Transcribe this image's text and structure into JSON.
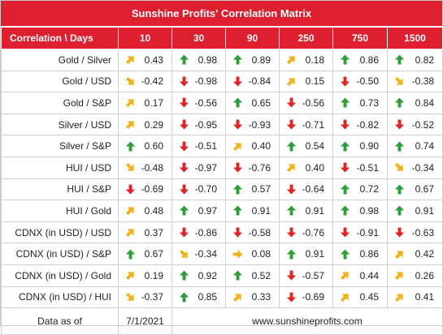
{
  "title": "Sunshine Profits' Correlation Matrix",
  "header": {
    "first": "Correlation \\ Days",
    "days": [
      "10",
      "30",
      "90",
      "250",
      "750",
      "1500"
    ]
  },
  "colors": {
    "header_bg": "#dd1f2f",
    "up": "#2e9e3a",
    "down": "#e02424",
    "up_right": "#f2b21b",
    "down_right": "#f2b21b",
    "right": "#f2b21b"
  },
  "rows": [
    {
      "label": "Gold / Silver",
      "cells": [
        {
          "v": "0.43",
          "icon": "arrow-up-right-icon"
        },
        {
          "v": "0.98",
          "icon": "arrow-up-icon"
        },
        {
          "v": "0.89",
          "icon": "arrow-up-icon"
        },
        {
          "v": "0.18",
          "icon": "arrow-up-right-icon"
        },
        {
          "v": "0.86",
          "icon": "arrow-up-icon"
        },
        {
          "v": "0.82",
          "icon": "arrow-up-icon"
        }
      ]
    },
    {
      "label": "Gold / USD",
      "cells": [
        {
          "v": "-0.42",
          "icon": "arrow-down-right-icon"
        },
        {
          "v": "-0.98",
          "icon": "arrow-down-icon"
        },
        {
          "v": "-0.84",
          "icon": "arrow-down-icon"
        },
        {
          "v": "0.15",
          "icon": "arrow-up-right-icon"
        },
        {
          "v": "-0.50",
          "icon": "arrow-down-icon"
        },
        {
          "v": "-0.38",
          "icon": "arrow-down-right-icon"
        }
      ]
    },
    {
      "label": "Gold / S&P",
      "cells": [
        {
          "v": "0.17",
          "icon": "arrow-up-right-icon"
        },
        {
          "v": "-0.56",
          "icon": "arrow-down-icon"
        },
        {
          "v": "0.65",
          "icon": "arrow-up-icon"
        },
        {
          "v": "-0.56",
          "icon": "arrow-down-icon"
        },
        {
          "v": "0.73",
          "icon": "arrow-up-icon"
        },
        {
          "v": "0.84",
          "icon": "arrow-up-icon"
        }
      ]
    },
    {
      "label": "Silver / USD",
      "cells": [
        {
          "v": "0.29",
          "icon": "arrow-up-right-icon"
        },
        {
          "v": "-0.95",
          "icon": "arrow-down-icon"
        },
        {
          "v": "-0.93",
          "icon": "arrow-down-icon"
        },
        {
          "v": "-0.71",
          "icon": "arrow-down-icon"
        },
        {
          "v": "-0.82",
          "icon": "arrow-down-icon"
        },
        {
          "v": "-0.52",
          "icon": "arrow-down-icon"
        }
      ]
    },
    {
      "label": "Silver / S&P",
      "cells": [
        {
          "v": "0.60",
          "icon": "arrow-up-icon"
        },
        {
          "v": "-0.51",
          "icon": "arrow-down-icon"
        },
        {
          "v": "0.40",
          "icon": "arrow-up-right-icon"
        },
        {
          "v": "0.54",
          "icon": "arrow-up-icon"
        },
        {
          "v": "0.90",
          "icon": "arrow-up-icon"
        },
        {
          "v": "0.74",
          "icon": "arrow-up-icon"
        }
      ]
    },
    {
      "label": "HUI / USD",
      "cells": [
        {
          "v": "-0.48",
          "icon": "arrow-down-right-icon"
        },
        {
          "v": "-0.97",
          "icon": "arrow-down-icon"
        },
        {
          "v": "-0.76",
          "icon": "arrow-down-icon"
        },
        {
          "v": "0.40",
          "icon": "arrow-up-right-icon"
        },
        {
          "v": "-0.51",
          "icon": "arrow-down-icon"
        },
        {
          "v": "-0.34",
          "icon": "arrow-down-right-icon"
        }
      ]
    },
    {
      "label": "HUI / S&P",
      "cells": [
        {
          "v": "-0.69",
          "icon": "arrow-down-icon"
        },
        {
          "v": "-0.70",
          "icon": "arrow-down-icon"
        },
        {
          "v": "0.57",
          "icon": "arrow-up-icon"
        },
        {
          "v": "-0.64",
          "icon": "arrow-down-icon"
        },
        {
          "v": "0.72",
          "icon": "arrow-up-icon"
        },
        {
          "v": "0.67",
          "icon": "arrow-up-icon"
        }
      ]
    },
    {
      "label": "HUI / Gold",
      "cells": [
        {
          "v": "0.48",
          "icon": "arrow-up-right-icon"
        },
        {
          "v": "0.97",
          "icon": "arrow-up-icon"
        },
        {
          "v": "0.91",
          "icon": "arrow-up-icon"
        },
        {
          "v": "0.91",
          "icon": "arrow-up-icon"
        },
        {
          "v": "0.98",
          "icon": "arrow-up-icon"
        },
        {
          "v": "0.91",
          "icon": "arrow-up-icon"
        }
      ]
    },
    {
      "label": "CDNX (in USD) / USD",
      "cells": [
        {
          "v": "0.37",
          "icon": "arrow-up-right-icon"
        },
        {
          "v": "-0.86",
          "icon": "arrow-down-icon"
        },
        {
          "v": "-0.58",
          "icon": "arrow-down-icon"
        },
        {
          "v": "-0.76",
          "icon": "arrow-down-icon"
        },
        {
          "v": "-0.91",
          "icon": "arrow-down-icon"
        },
        {
          "v": "-0.63",
          "icon": "arrow-down-icon"
        }
      ]
    },
    {
      "label": "CDNX (in USD) / S&P",
      "cells": [
        {
          "v": "0.67",
          "icon": "arrow-up-icon"
        },
        {
          "v": "-0.34",
          "icon": "arrow-down-right-icon"
        },
        {
          "v": "0.08",
          "icon": "arrow-right-icon"
        },
        {
          "v": "0.91",
          "icon": "arrow-up-icon"
        },
        {
          "v": "0.86",
          "icon": "arrow-up-icon"
        },
        {
          "v": "0.42",
          "icon": "arrow-up-right-icon"
        }
      ]
    },
    {
      "label": "CDNX (in USD) / Gold",
      "cells": [
        {
          "v": "0.19",
          "icon": "arrow-up-right-icon"
        },
        {
          "v": "0.92",
          "icon": "arrow-up-icon"
        },
        {
          "v": "0.52",
          "icon": "arrow-up-icon"
        },
        {
          "v": "-0.57",
          "icon": "arrow-down-icon"
        },
        {
          "v": "0.44",
          "icon": "arrow-up-right-icon"
        },
        {
          "v": "0.26",
          "icon": "arrow-up-right-icon"
        }
      ]
    },
    {
      "label": "CDNX (in USD) / HUI",
      "cells": [
        {
          "v": "-0.37",
          "icon": "arrow-down-right-icon"
        },
        {
          "v": "0.85",
          "icon": "arrow-up-icon"
        },
        {
          "v": "0.33",
          "icon": "arrow-up-right-icon"
        },
        {
          "v": "-0.69",
          "icon": "arrow-down-icon"
        },
        {
          "v": "0.45",
          "icon": "arrow-up-right-icon"
        },
        {
          "v": "0.41",
          "icon": "arrow-up-right-icon"
        }
      ]
    }
  ],
  "footer": {
    "label": "Data as of",
    "date": "7/1/2021",
    "site": "www.sunshineprofits.com"
  }
}
